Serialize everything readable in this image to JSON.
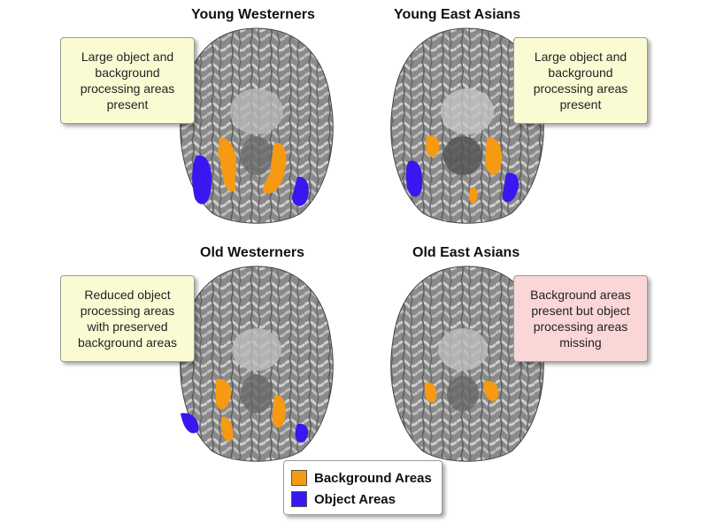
{
  "panels": [
    {
      "title": "Young Westerners",
      "note": "Large object and background processing areas present",
      "note_color": "#fbfbd3"
    },
    {
      "title": "Young East Asians",
      "note": "Large object and background processing areas present",
      "note_color": "#fbfbd3"
    },
    {
      "title": "Old Westerners",
      "note": "Reduced object processing areas with preserved background areas",
      "note_color": "#fbfbd3"
    },
    {
      "title": "Old East Asians",
      "note": "Background areas present but object processing areas missing",
      "note_color": "#fbd6d6"
    }
  ],
  "legend": {
    "background_label": "Background Areas",
    "object_label": "Object Areas",
    "background_color": "#f59a12",
    "object_color": "#3a16f0"
  }
}
